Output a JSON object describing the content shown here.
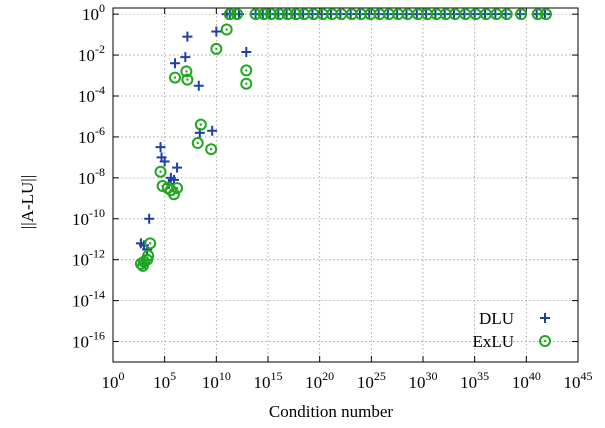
{
  "chart_data": {
    "type": "scatter",
    "title": "",
    "xlabel": "Condition number",
    "ylabel": "||A-LU||",
    "x_scale": "log10",
    "y_scale": "log10",
    "xlim_exp": [
      0,
      45
    ],
    "ylim_exp": [
      -17,
      0.3
    ],
    "x_ticks": [
      {
        "base": "10",
        "exp": "0",
        "value": 0
      },
      {
        "base": "10",
        "exp": "5",
        "value": 5
      },
      {
        "base": "10",
        "exp": "10",
        "value": 10
      },
      {
        "base": "10",
        "exp": "15",
        "value": 15
      },
      {
        "base": "10",
        "exp": "20",
        "value": 20
      },
      {
        "base": "10",
        "exp": "25",
        "value": 25
      },
      {
        "base": "10",
        "exp": "30",
        "value": 30
      },
      {
        "base": "10",
        "exp": "35",
        "value": 35
      },
      {
        "base": "10",
        "exp": "40",
        "value": 40
      },
      {
        "base": "10",
        "exp": "45",
        "value": 45
      }
    ],
    "y_ticks": [
      {
        "base": "10",
        "exp": "0",
        "value": 0
      },
      {
        "base": "10",
        "exp": "-2",
        "value": -2
      },
      {
        "base": "10",
        "exp": "-4",
        "value": -4
      },
      {
        "base": "10",
        "exp": "-6",
        "value": -6
      },
      {
        "base": "10",
        "exp": "-8",
        "value": -8
      },
      {
        "base": "10",
        "exp": "-10",
        "value": -10
      },
      {
        "base": "10",
        "exp": "-12",
        "value": -12
      },
      {
        "base": "10",
        "exp": "-14",
        "value": -14
      },
      {
        "base": "10",
        "exp": "-16",
        "value": -16
      }
    ],
    "grid": true,
    "legend_position": "bottom-right",
    "series": [
      {
        "name": "DLU",
        "marker": "plus",
        "color": "#1f3fa8",
        "points_log10": [
          [
            2.7,
            -11.2
          ],
          [
            3.0,
            -11.3
          ],
          [
            3.3,
            -11.5
          ],
          [
            3.1,
            -12.2
          ],
          [
            3.5,
            -10.0
          ],
          [
            4.6,
            -6.5
          ],
          [
            4.7,
            -7.0
          ],
          [
            5.0,
            -7.2
          ],
          [
            5.6,
            -8.0
          ],
          [
            5.4,
            -8.3
          ],
          [
            5.9,
            -8.1
          ],
          [
            6.2,
            -7.5
          ],
          [
            6.0,
            -2.4
          ],
          [
            7.2,
            -1.1
          ],
          [
            7.0,
            -2.1
          ],
          [
            8.3,
            -3.5
          ],
          [
            8.4,
            -5.8
          ],
          [
            9.6,
            -5.7
          ],
          [
            10.0,
            -0.85
          ],
          [
            11.0,
            0.0
          ],
          [
            11.3,
            0.0
          ],
          [
            11.8,
            0.0
          ],
          [
            12.2,
            0.0
          ],
          [
            12.9,
            -1.85
          ],
          [
            13.8,
            0.0
          ],
          [
            14.5,
            0.0
          ],
          [
            15.2,
            0.0
          ],
          [
            16.0,
            0.0
          ],
          [
            16.8,
            0.0
          ],
          [
            17.6,
            0.0
          ],
          [
            18.4,
            0.0
          ],
          [
            19.3,
            0.0
          ],
          [
            20.2,
            0.0
          ],
          [
            21.1,
            0.0
          ],
          [
            22.0,
            0.0
          ],
          [
            23.0,
            0.0
          ],
          [
            23.9,
            0.0
          ],
          [
            24.8,
            0.0
          ],
          [
            25.7,
            0.0
          ],
          [
            26.6,
            0.0
          ],
          [
            27.5,
            0.0
          ],
          [
            28.4,
            0.0
          ],
          [
            29.4,
            0.0
          ],
          [
            30.3,
            0.0
          ],
          [
            31.2,
            0.0
          ],
          [
            32.1,
            0.0
          ],
          [
            33.0,
            0.0
          ],
          [
            34.0,
            0.0
          ],
          [
            35.0,
            0.0
          ],
          [
            36.0,
            0.0
          ],
          [
            37.0,
            0.0
          ],
          [
            38.0,
            0.0
          ],
          [
            39.4,
            0.0
          ],
          [
            41.0,
            0.0
          ],
          [
            41.8,
            0.0
          ]
        ]
      },
      {
        "name": "ExLU",
        "marker": "circle",
        "color": "#1fa81f",
        "points_log10": [
          [
            2.7,
            -12.2
          ],
          [
            2.9,
            -12.3
          ],
          [
            3.0,
            -12.1
          ],
          [
            3.3,
            -12.0
          ],
          [
            3.4,
            -11.8
          ],
          [
            3.6,
            -11.2
          ],
          [
            4.6,
            -7.7
          ],
          [
            4.8,
            -8.4
          ],
          [
            5.3,
            -8.5
          ],
          [
            5.6,
            -8.6
          ],
          [
            5.9,
            -8.8
          ],
          [
            6.2,
            -8.5
          ],
          [
            6.0,
            -3.1
          ],
          [
            7.1,
            -2.8
          ],
          [
            7.2,
            -3.2
          ],
          [
            8.2,
            -6.3
          ],
          [
            8.5,
            -5.4
          ],
          [
            9.5,
            -6.6
          ],
          [
            10.0,
            -1.7
          ],
          [
            11.0,
            -0.75
          ],
          [
            11.3,
            0.0
          ],
          [
            12.0,
            0.0
          ],
          [
            12.9,
            -2.75
          ],
          [
            12.9,
            -3.4
          ],
          [
            13.8,
            0.0
          ],
          [
            14.6,
            0.0
          ],
          [
            15.3,
            0.0
          ],
          [
            16.1,
            0.0
          ],
          [
            16.9,
            0.0
          ],
          [
            17.7,
            0.0
          ],
          [
            18.5,
            0.0
          ],
          [
            19.4,
            0.0
          ],
          [
            20.3,
            0.0
          ],
          [
            21.2,
            0.0
          ],
          [
            22.1,
            0.0
          ],
          [
            23.1,
            0.0
          ],
          [
            24.0,
            0.0
          ],
          [
            24.9,
            0.0
          ],
          [
            25.8,
            0.0
          ],
          [
            26.7,
            0.0
          ],
          [
            27.6,
            0.0
          ],
          [
            28.5,
            0.0
          ],
          [
            29.5,
            0.0
          ],
          [
            30.4,
            0.0
          ],
          [
            31.3,
            0.0
          ],
          [
            32.2,
            0.0
          ],
          [
            33.1,
            0.0
          ],
          [
            34.1,
            0.0
          ],
          [
            35.1,
            0.0
          ],
          [
            36.1,
            0.0
          ],
          [
            37.1,
            0.0
          ],
          [
            38.1,
            0.0
          ],
          [
            39.5,
            0.0
          ],
          [
            41.1,
            0.0
          ],
          [
            41.9,
            0.0
          ]
        ]
      }
    ]
  }
}
